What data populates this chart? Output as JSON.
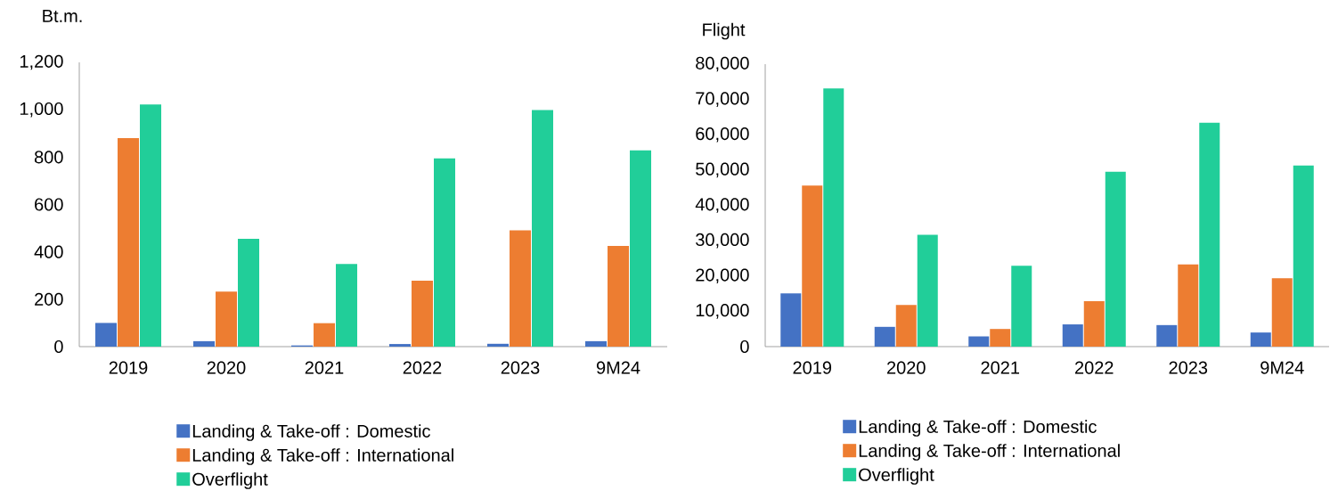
{
  "chart_data": [
    {
      "type": "bar",
      "ylabel": "Bt.m.",
      "categories": [
        "2019",
        "2020",
        "2021",
        "2022",
        "2023",
        "9M24"
      ],
      "series": [
        {
          "name": "Landing & Take-off : Domestic",
          "color": "#4472c4",
          "values": [
            100,
            23,
            5,
            11,
            12,
            23
          ]
        },
        {
          "name": "Landing & Take-off : International",
          "color": "#ed7d31",
          "values": [
            880,
            232,
            99,
            278,
            491,
            425
          ]
        },
        {
          "name": "Overflight",
          "color": "#21ce99",
          "values": [
            1022,
            455,
            349,
            795,
            999,
            829
          ]
        }
      ],
      "ylim": [
        0,
        1200
      ],
      "yticks": [
        0,
        200,
        400,
        600,
        800,
        {
          "value": 1000,
          "label": "1,000"
        },
        {
          "value": 1200,
          "label": "1,200"
        }
      ],
      "legend": "bottom"
    },
    {
      "type": "bar",
      "ylabel": "Flight",
      "categories": [
        "2019",
        "2020",
        "2021",
        "2022",
        "2023",
        "9M24"
      ],
      "series": [
        {
          "name": "Landing & Take-off : Domestic",
          "color": "#4472c4",
          "values": [
            15100,
            5600,
            2900,
            6300,
            6100,
            4000
          ]
        },
        {
          "name": "Landing & Take-off : International",
          "color": "#ed7d31",
          "values": [
            45600,
            11800,
            5000,
            12900,
            23300,
            19400
          ]
        },
        {
          "name": "Overflight",
          "color": "#21ce99",
          "values": [
            73100,
            31700,
            22900,
            49500,
            63400,
            51300
          ]
        }
      ],
      "ylim": [
        0,
        80000
      ],
      "yticks": [
        0,
        {
          "value": 10000,
          "label": "10,000"
        },
        {
          "value": 20000,
          "label": "20,000"
        },
        {
          "value": 30000,
          "label": "30,000"
        },
        {
          "value": 40000,
          "label": "40,000"
        },
        {
          "value": 50000,
          "label": "50,000"
        },
        {
          "value": 60000,
          "label": "60,000"
        },
        {
          "value": 70000,
          "label": "70,000"
        },
        {
          "value": 80000,
          "label": "80,000"
        }
      ],
      "legend": "bottom"
    }
  ]
}
